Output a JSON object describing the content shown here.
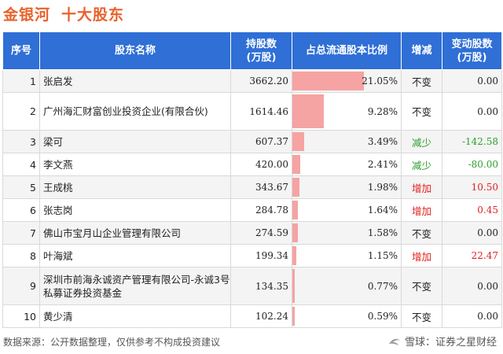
{
  "title": {
    "company": "金银河",
    "subject": "十大股东"
  },
  "table": {
    "headers": {
      "rank": "序号",
      "name": "股东名称",
      "shares": "持股数\n(万股)",
      "ratio": "占总流通股本比例",
      "change_type": "增减",
      "change": "变动股数\n(万股)"
    },
    "rows": [
      {
        "rank": "1",
        "name": "张启发",
        "shares": "3662.20",
        "ratio": "21.05%",
        "ratio_value": 21.05,
        "change_type": "不变",
        "change_dir": "flat",
        "change": "0.00"
      },
      {
        "rank": "2",
        "name": "广州海汇财富创业投资企业(有限合伙)",
        "shares": "1614.46",
        "ratio": "9.28%",
        "ratio_value": 9.28,
        "change_type": "不变",
        "change_dir": "flat",
        "change": "0.00"
      },
      {
        "rank": "3",
        "name": "梁可",
        "shares": "607.37",
        "ratio": "3.49%",
        "ratio_value": 3.49,
        "change_type": "减少",
        "change_dir": "dec",
        "change": "-142.58"
      },
      {
        "rank": "4",
        "name": "李文燕",
        "shares": "420.00",
        "ratio": "2.41%",
        "ratio_value": 2.41,
        "change_type": "减少",
        "change_dir": "dec",
        "change": "-80.00"
      },
      {
        "rank": "5",
        "name": "王成桃",
        "shares": "343.67",
        "ratio": "1.98%",
        "ratio_value": 1.98,
        "change_type": "增加",
        "change_dir": "inc",
        "change": "10.50"
      },
      {
        "rank": "6",
        "name": "张志岗",
        "shares": "284.78",
        "ratio": "1.64%",
        "ratio_value": 1.64,
        "change_type": "增加",
        "change_dir": "inc",
        "change": "0.45"
      },
      {
        "rank": "7",
        "name": "佛山市宝月山企业管理有限公司",
        "shares": "274.59",
        "ratio": "1.58%",
        "ratio_value": 1.58,
        "change_type": "不变",
        "change_dir": "flat",
        "change": "0.00"
      },
      {
        "rank": "8",
        "name": "叶海斌",
        "shares": "199.34",
        "ratio": "1.15%",
        "ratio_value": 1.15,
        "change_type": "增加",
        "change_dir": "inc",
        "change": "22.47"
      },
      {
        "rank": "9",
        "name": "深圳市前海永诚资产管理有限公司-永诚3号私募证券投资基金",
        "shares": "134.35",
        "ratio": "0.77%",
        "ratio_value": 0.77,
        "change_type": "不变",
        "change_dir": "flat",
        "change": "0.00"
      },
      {
        "rank": "10",
        "name": "黄少清",
        "shares": "102.24",
        "ratio": "0.59%",
        "ratio_value": 0.59,
        "change_type": "不变",
        "change_dir": "flat",
        "change": "0.00"
      }
    ]
  },
  "footer": {
    "source": "数据来源：公开数据整理，仅供参考不构成投资建议"
  },
  "brand": {
    "text": "雪球：证券之星财经"
  },
  "colors": {
    "title": "#e8622c",
    "header_bg": "#2f6fd6",
    "bar": "#f5a3a3",
    "increase": "#e02020",
    "decrease": "#2aa02a"
  }
}
